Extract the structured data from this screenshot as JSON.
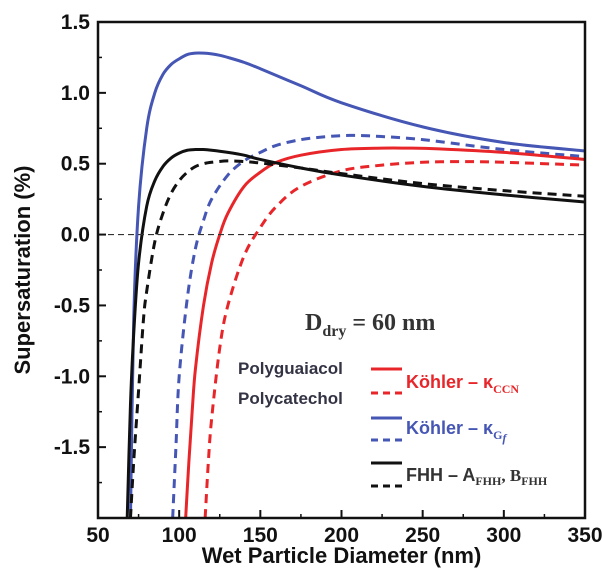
{
  "chart_data": {
    "type": "line",
    "xlabel": "Wet Particle Diameter (nm)",
    "ylabel": "Supersaturation (%)",
    "xlim": [
      50,
      350
    ],
    "ylim": [
      -2.0,
      1.5
    ],
    "xticks": [
      "50",
      "100",
      "150",
      "200",
      "250",
      "300",
      "350"
    ],
    "yticks": [
      "-1.5",
      "-1.0",
      "-0.5",
      "0.0",
      "0.5",
      "1.0",
      "1.5"
    ],
    "xtick_values": [
      50,
      100,
      150,
      200,
      250,
      300,
      350
    ],
    "ytick_values": [
      -1.5,
      -1.0,
      -0.5,
      0.0,
      0.5,
      1.0,
      1.5
    ],
    "grid": false,
    "reference_line": {
      "y": 0.0,
      "style": "dashed",
      "color": "#333333"
    },
    "annotation": {
      "main": "D",
      "sub": "dry",
      "rest": " = 60 nm"
    },
    "legend": {
      "placement": "bottom-right",
      "group_labels": [
        "Polyguaiacol",
        "Polycatechol"
      ],
      "entries": [
        {
          "main": "Köhler – κ",
          "sub": "CCN",
          "tail": "",
          "color": "#e8262a"
        },
        {
          "main": "Köhler – κ",
          "sub": "G",
          "subsub": "f",
          "tail": "",
          "color": "#4556b4"
        },
        {
          "main": "FHH – A",
          "sub": "FHH",
          "mid": ", B",
          "sub2": "FHH",
          "color": "#111111"
        }
      ]
    },
    "series": [
      {
        "color": "#4556b4",
        "dash": "solid",
        "x": [
          70,
          72,
          75,
          80,
          85,
          90,
          95,
          100,
          105,
          110,
          115,
          120,
          125,
          130,
          140,
          150,
          175,
          200,
          250,
          300,
          350
        ],
        "y": [
          -2.0,
          -0.6,
          0.2,
          0.75,
          1.0,
          1.13,
          1.2,
          1.24,
          1.27,
          1.28,
          1.28,
          1.275,
          1.265,
          1.25,
          1.215,
          1.17,
          1.05,
          0.93,
          0.76,
          0.65,
          0.59
        ]
      },
      {
        "color": "#4556b4",
        "dash": "dashed",
        "x": [
          96,
          98,
          100,
          105,
          110,
          115,
          120,
          130,
          140,
          150,
          160,
          175,
          190,
          205,
          220,
          250,
          300,
          350
        ],
        "y": [
          -2.0,
          -1.5,
          -1.0,
          -0.45,
          -0.1,
          0.1,
          0.25,
          0.42,
          0.52,
          0.58,
          0.63,
          0.67,
          0.69,
          0.7,
          0.695,
          0.67,
          0.6,
          0.55
        ]
      },
      {
        "color": "#e8262a",
        "dash": "solid",
        "x": [
          104,
          106,
          108,
          110,
          115,
          120,
          125,
          130,
          140,
          150,
          160,
          175,
          200,
          225,
          240,
          260,
          300,
          350
        ],
        "y": [
          -2.0,
          -1.6,
          -1.25,
          -0.95,
          -0.5,
          -0.2,
          0.0,
          0.15,
          0.34,
          0.44,
          0.51,
          0.56,
          0.6,
          0.61,
          0.61,
          0.605,
          0.58,
          0.53
        ]
      },
      {
        "color": "#e8262a",
        "dash": "dashed",
        "x": [
          116,
          118,
          120,
          125,
          130,
          140,
          150,
          160,
          175,
          200,
          225,
          250,
          275,
          300,
          350
        ],
        "y": [
          -2.0,
          -1.6,
          -1.3,
          -0.8,
          -0.5,
          -0.15,
          0.05,
          0.2,
          0.34,
          0.45,
          0.49,
          0.51,
          0.515,
          0.51,
          0.49
        ]
      },
      {
        "color": "#111111",
        "dash": "solid",
        "x": [
          68,
          70,
          72,
          75,
          80,
          85,
          90,
          95,
          100,
          105,
          110,
          115,
          120,
          130,
          140,
          150,
          175,
          200,
          250,
          300,
          350
        ],
        "y": [
          -2.0,
          -1.2,
          -0.7,
          -0.2,
          0.2,
          0.38,
          0.48,
          0.54,
          0.575,
          0.595,
          0.6,
          0.6,
          0.595,
          0.58,
          0.56,
          0.53,
          0.47,
          0.42,
          0.34,
          0.28,
          0.23
        ]
      },
      {
        "color": "#111111",
        "dash": "dashed",
        "x": [
          70,
          72,
          75,
          78,
          80,
          85,
          90,
          95,
          100,
          105,
          110,
          115,
          120,
          130,
          140,
          150,
          175,
          200,
          250,
          300,
          350
        ],
        "y": [
          -2.0,
          -1.6,
          -1.1,
          -0.6,
          -0.4,
          -0.05,
          0.15,
          0.29,
          0.38,
          0.44,
          0.48,
          0.5,
          0.51,
          0.52,
          0.515,
          0.505,
          0.47,
          0.43,
          0.36,
          0.31,
          0.27
        ]
      }
    ]
  }
}
